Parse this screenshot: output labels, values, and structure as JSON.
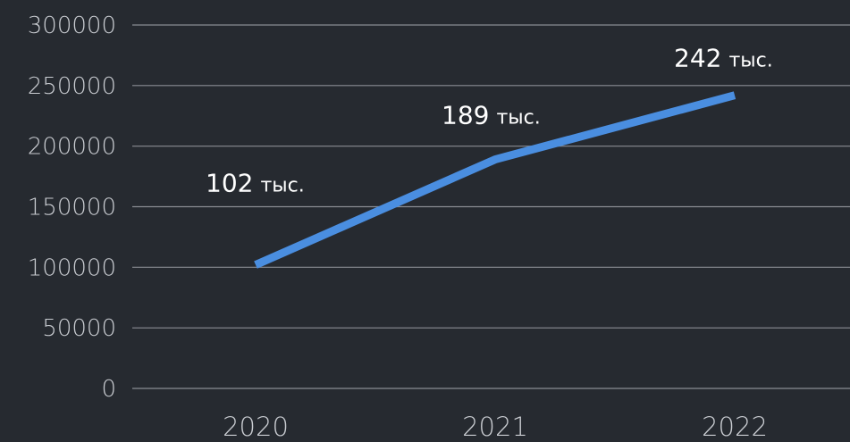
{
  "chart_data": {
    "type": "line",
    "title": "",
    "xlabel": "",
    "ylabel": "",
    "categories": [
      "2020",
      "2021",
      "2022"
    ],
    "series": [
      {
        "values": [
          102000,
          189000,
          242000
        ],
        "data_labels": [
          {
            "number": "102",
            "unit": "тыс."
          },
          {
            "number": "189",
            "unit": "тыс."
          },
          {
            "number": "242",
            "unit": "тыс."
          }
        ]
      }
    ],
    "y_ticks": [
      "0",
      "50000",
      "100000",
      "150000",
      "200000",
      "250000",
      "300000"
    ],
    "ylim": [
      0,
      300000
    ],
    "grid": true,
    "legend": "none",
    "colors": {
      "background": "#262a30",
      "line": "#4a8ee0",
      "grid": "#8a8d93",
      "tick_text": "#c9ccd1",
      "data_label_text": "#ffffff"
    }
  }
}
